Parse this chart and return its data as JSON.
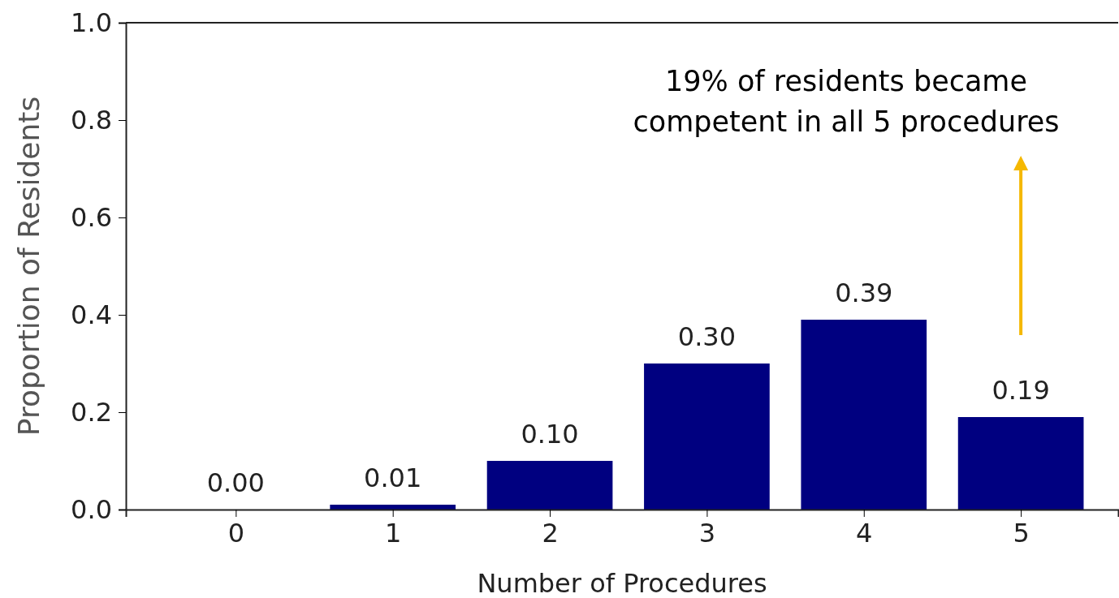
{
  "chart_data": {
    "type": "bar",
    "xlabel": "Number of Procedures",
    "ylabel": "Proportion of Residents",
    "categories": [
      "0",
      "1",
      "2",
      "3",
      "4",
      "5"
    ],
    "values": [
      0.0,
      0.01,
      0.1,
      0.3,
      0.39,
      0.19
    ],
    "color": "#000080",
    "value_labels": [
      "0.00",
      "0.01",
      "0.10",
      "0.30",
      "0.39",
      "0.19"
    ],
    "ylim": [
      0,
      1
    ],
    "yticks": [
      {
        "value": 0,
        "label": "0.0"
      },
      {
        "value": 0.2,
        "label": "0.2"
      },
      {
        "value": 0.4,
        "label": "0.4"
      },
      {
        "value": 0.6,
        "label": "0.6"
      },
      {
        "value": 0.8,
        "label": "0.8"
      },
      {
        "value": 1,
        "label": "1.0"
      }
    ],
    "grid": false,
    "annotations": [
      "19% of residents became competent in all 5 procedures"
    ]
  }
}
